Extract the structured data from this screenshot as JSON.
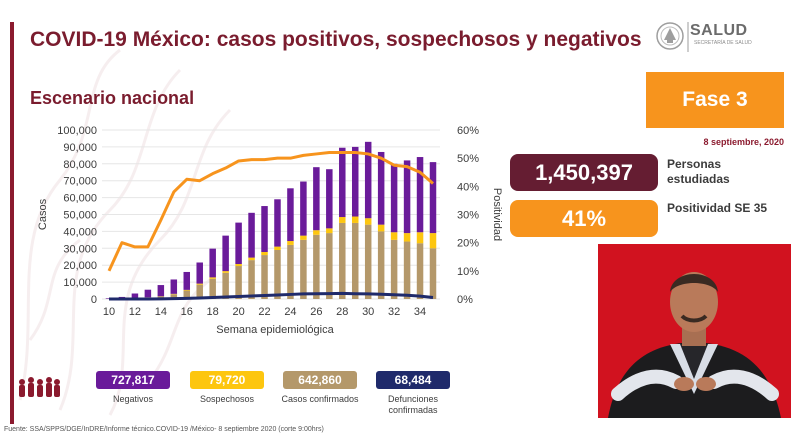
{
  "header": {
    "title": "COVID-19 México: casos positivos, sospechosos y negativos",
    "subtitle": "Escenario nacional"
  },
  "logo": {
    "text": "SALUD",
    "subtext": "SECRETARÍA DE SALUD"
  },
  "phase": {
    "label": "Fase 3",
    "date": "8 septiembre, 2020"
  },
  "stats": {
    "persons_value": "1,450,397",
    "persons_label": "Personas estudiadas",
    "positivity_value": "41%",
    "positivity_label": "Positividad SE 35"
  },
  "legend": [
    {
      "value": "727,817",
      "label": "Negativos",
      "color": "#6a1b9a"
    },
    {
      "value": "79,720",
      "label": "Sospechosos",
      "color": "#fdc60f"
    },
    {
      "value": "642,860",
      "label": "Casos confirmados",
      "color": "#b4986a"
    },
    {
      "value": "68,484",
      "label": "Defunciones confirmadas",
      "color": "#1f2a6b"
    }
  ],
  "colors": {
    "brand": "#7a1c2e",
    "negativos": "#6a1b9a",
    "sospechosos": "#fdc60f",
    "confirmados": "#b4986a",
    "defunciones": "#1f2a6b",
    "positividad": "#f7941d"
  },
  "footer": "Fuente: SSA/SPPS/DGE/InDRE/Informe técnico.COVID-19 /México- 8 septiembre 2020 (corte 9:00hrs)",
  "chart_data": {
    "type": "bar",
    "stacked": true,
    "xlabel": "Semana epidemiológica",
    "ylabel": "Casos",
    "y2label": "Positividad",
    "x": [
      10,
      11,
      12,
      13,
      14,
      15,
      16,
      17,
      18,
      19,
      20,
      21,
      22,
      23,
      24,
      25,
      26,
      27,
      28,
      29,
      30,
      31,
      32,
      33,
      34,
      35
    ],
    "xticks": [
      10,
      12,
      14,
      16,
      18,
      20,
      22,
      24,
      26,
      28,
      30,
      32,
      34
    ],
    "ylim": [
      0,
      100000
    ],
    "yticks": [
      "0",
      "10,000",
      "20,000",
      "30,000",
      "40,000",
      "50,000",
      "60,000",
      "70,000",
      "80,000",
      "90,000",
      "100,000"
    ],
    "y2lim": [
      0,
      60
    ],
    "y2ticks": [
      "0%",
      "10%",
      "20%",
      "30%",
      "40%",
      "50%",
      "60%"
    ],
    "series": [
      {
        "name": "Casos confirmados",
        "color": "#b4986a",
        "values": [
          50,
          200,
          500,
          900,
          1500,
          2800,
          5000,
          8500,
          12000,
          15500,
          19500,
          23000,
          26000,
          29000,
          32000,
          35000,
          38000,
          39000,
          45000,
          45000,
          44000,
          40000,
          35000,
          34000,
          33000,
          30000
        ]
      },
      {
        "name": "Sospechosos",
        "color": "#fdc60f",
        "values": [
          5,
          20,
          50,
          100,
          150,
          250,
          400,
          600,
          800,
          1000,
          1200,
          1500,
          1800,
          2000,
          2300,
          2500,
          2700,
          2800,
          3500,
          3800,
          3800,
          4000,
          4500,
          5000,
          6500,
          9000
        ]
      },
      {
        "name": "Negativos",
        "color": "#6a1b9a",
        "values": [
          350,
          1000,
          2700,
          4500,
          6600,
          8500,
          10600,
          12500,
          17000,
          21000,
          24500,
          26500,
          27200,
          28000,
          31200,
          32000,
          37300,
          35000,
          41000,
          41200,
          45200,
          43000,
          40500,
          43000,
          44500,
          42000
        ]
      },
      {
        "name": "Defunciones",
        "color": "#1f2a6b",
        "values": [
          0,
          0,
          10,
          30,
          80,
          200,
          400,
          600,
          900,
          1200,
          1500,
          1800,
          2100,
          2400,
          2700,
          3000,
          3100,
          3200,
          3300,
          3100,
          3000,
          2800,
          2500,
          2200,
          1700,
          900
        ]
      }
    ],
    "positivity": [
      10,
      20,
      18.5,
      18.5,
      28,
      38,
      42.5,
      42,
      44.5,
      46.5,
      49,
      49.5,
      49.5,
      50,
      50,
      51,
      51.5,
      52,
      52,
      52,
      51.5,
      50,
      47.5,
      47,
      45,
      41
    ]
  }
}
